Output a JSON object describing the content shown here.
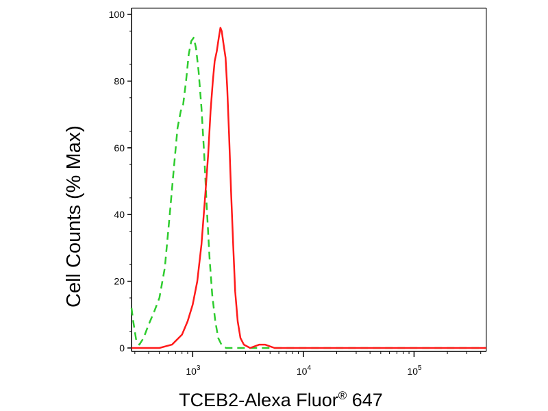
{
  "chart_data": {
    "type": "line",
    "title": "",
    "xlabel": "TCEB2-Alexa Fluor",
    "xlabel_super": "®",
    "xlabel_tail": " 647",
    "ylabel": "Cell Counts (% Max)",
    "xscale": "log",
    "xlim": [
      280,
      450000
    ],
    "ylim": [
      0,
      100
    ],
    "y_ticks": [
      0,
      20,
      40,
      60,
      80,
      100
    ],
    "x_ticks": [
      {
        "value": 1000,
        "base": "10",
        "exp": "3"
      },
      {
        "value": 10000,
        "base": "10",
        "exp": "4"
      },
      {
        "value": 100000,
        "base": "10",
        "exp": "5"
      }
    ],
    "grid": false,
    "legend": "none",
    "series": [
      {
        "color": "#2ecc2e",
        "style": "dashed",
        "points": [
          [
            280,
            12
          ],
          [
            290,
            8
          ],
          [
            310,
            2
          ],
          [
            330,
            1
          ],
          [
            360,
            3
          ],
          [
            400,
            7
          ],
          [
            450,
            11
          ],
          [
            500,
            15
          ],
          [
            560,
            24
          ],
          [
            620,
            40
          ],
          [
            680,
            55
          ],
          [
            730,
            66
          ],
          [
            780,
            71
          ],
          [
            820,
            73
          ],
          [
            870,
            80
          ],
          [
            920,
            88
          ],
          [
            970,
            92
          ],
          [
            1020,
            93
          ],
          [
            1070,
            90
          ],
          [
            1130,
            83
          ],
          [
            1200,
            72
          ],
          [
            1270,
            58
          ],
          [
            1340,
            42
          ],
          [
            1420,
            27
          ],
          [
            1500,
            16
          ],
          [
            1600,
            8
          ],
          [
            1700,
            3
          ],
          [
            1820,
            1
          ],
          [
            2000,
            0
          ],
          [
            3000,
            0
          ],
          [
            450000,
            0
          ]
        ]
      },
      {
        "color": "#ff1a1a",
        "style": "solid",
        "points": [
          [
            280,
            0
          ],
          [
            500,
            0
          ],
          [
            650,
            1
          ],
          [
            800,
            4
          ],
          [
            900,
            8
          ],
          [
            1000,
            13
          ],
          [
            1100,
            20
          ],
          [
            1200,
            31
          ],
          [
            1300,
            46
          ],
          [
            1380,
            58
          ],
          [
            1450,
            71
          ],
          [
            1520,
            80
          ],
          [
            1580,
            86
          ],
          [
            1650,
            89
          ],
          [
            1720,
            93
          ],
          [
            1780,
            96
          ],
          [
            1830,
            95
          ],
          [
            1900,
            91
          ],
          [
            1980,
            87
          ],
          [
            2050,
            78
          ],
          [
            2130,
            64
          ],
          [
            2220,
            47
          ],
          [
            2320,
            31
          ],
          [
            2420,
            17
          ],
          [
            2550,
            8
          ],
          [
            2700,
            3
          ],
          [
            2900,
            1
          ],
          [
            3300,
            0
          ],
          [
            4000,
            1
          ],
          [
            4500,
            1
          ],
          [
            5500,
            0
          ],
          [
            450000,
            0
          ]
        ]
      }
    ]
  }
}
